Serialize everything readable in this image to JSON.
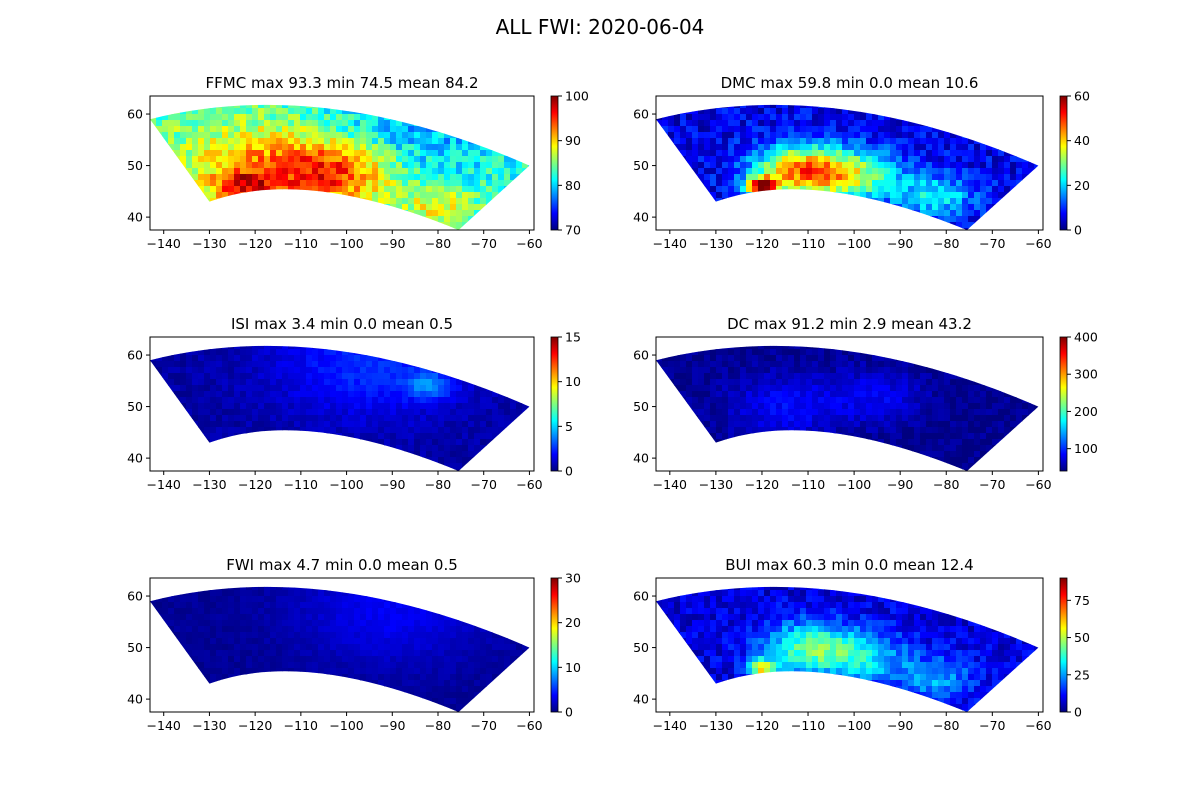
{
  "figure": {
    "title": "ALL FWI:  2020-06-04"
  },
  "colormap": [
    "#00007f",
    "#0000ff",
    "#007fff",
    "#00ffff",
    "#7fff7f",
    "#ffff00",
    "#ff7f00",
    "#ff0000",
    "#7f0000"
  ],
  "panels": [
    {
      "key": "ffmc",
      "title": "FFMC max 93.3  min 74.5 mean 84.2",
      "colorbar": {
        "min": 70,
        "max": 100,
        "ticks": [
          70,
          80,
          90,
          100
        ]
      },
      "hotspots": [
        {
          "lon": -115,
          "lat": 49,
          "value": 93,
          "spread": 0.22
        },
        {
          "lon": -100,
          "lat": 49,
          "value": 92,
          "spread": 0.15
        },
        {
          "lon": -123,
          "lat": 46,
          "value": 91,
          "spread": 0.07
        },
        {
          "lon": -138,
          "lat": 54,
          "value": 84,
          "spread": 0.2
        },
        {
          "lon": -90,
          "lat": 55,
          "value": 78,
          "spread": 0.25
        },
        {
          "lon": -80,
          "lat": 42,
          "value": 89,
          "spread": 0.1
        }
      ],
      "base": 83,
      "noise": 3
    },
    {
      "key": "dmc",
      "title": "DMC max 59.8  min 0.0 mean 10.6",
      "colorbar": {
        "min": 0,
        "max": 60,
        "ticks": [
          0,
          20,
          40,
          60
        ]
      },
      "hotspots": [
        {
          "lon": -112,
          "lat": 49,
          "value": 42,
          "spread": 0.12
        },
        {
          "lon": -120,
          "lat": 46,
          "value": 55,
          "spread": 0.04
        },
        {
          "lon": -100,
          "lat": 48,
          "value": 30,
          "spread": 0.12
        },
        {
          "lon": -82,
          "lat": 44,
          "value": 22,
          "spread": 0.1
        }
      ],
      "base": 6,
      "noise": 5
    },
    {
      "key": "isi",
      "title": "ISI max 3.4  min 0.0 mean 0.5",
      "colorbar": {
        "min": 0,
        "max": 15,
        "ticks": [
          0,
          5,
          10,
          15
        ]
      },
      "hotspots": [
        {
          "lon": -95,
          "lat": 58,
          "value": 2.5,
          "spread": 0.25
        },
        {
          "lon": -82,
          "lat": 54,
          "value": 3.0,
          "spread": 0.06
        }
      ],
      "base": 0.5,
      "noise": 0.4
    },
    {
      "key": "dc",
      "title": "DC max 91.2  min 2.9 mean 43.2",
      "colorbar": {
        "min": 40,
        "max": 400,
        "ticks": [
          100,
          200,
          300,
          400
        ]
      },
      "hotspots": [
        {
          "lon": -115,
          "lat": 50,
          "value": 85,
          "spread": 0.15
        },
        {
          "lon": -95,
          "lat": 52,
          "value": 80,
          "spread": 0.12
        }
      ],
      "base": 45,
      "noise": 12
    },
    {
      "key": "fwi",
      "title": "FWI max 4.7  min 0.0 mean 0.5",
      "colorbar": {
        "min": 0,
        "max": 30,
        "ticks": [
          0,
          10,
          20,
          30
        ]
      },
      "hotspots": [
        {
          "lon": -90,
          "lat": 57,
          "value": 3.5,
          "spread": 0.25
        }
      ],
      "base": 0.6,
      "noise": 0.5
    },
    {
      "key": "bui",
      "title": "BUI max 60.3  min 0.0 mean 12.4",
      "colorbar": {
        "min": 0,
        "max": 90,
        "ticks": [
          0,
          25,
          50,
          75
        ]
      },
      "hotspots": [
        {
          "lon": -110,
          "lat": 50,
          "value": 40,
          "spread": 0.12
        },
        {
          "lon": -120,
          "lat": 46,
          "value": 55,
          "spread": 0.04
        },
        {
          "lon": -98,
          "lat": 48,
          "value": 30,
          "spread": 0.12
        },
        {
          "lon": -82,
          "lat": 44,
          "value": 25,
          "spread": 0.1
        }
      ],
      "base": 8,
      "noise": 6
    }
  ],
  "axes": {
    "xticks": [
      -140,
      -130,
      -120,
      -110,
      -100,
      -90,
      -80,
      -70,
      -60
    ],
    "yticks": [
      40,
      50,
      60
    ],
    "xlim": [
      -143,
      -59
    ],
    "ylim": [
      37.5,
      63.5
    ]
  },
  "domain": {
    "west_corner": [
      -143,
      59
    ],
    "east_corner": [
      -60,
      50
    ],
    "sw_corner": [
      -130,
      43
    ],
    "se_corner": [
      -75.5,
      37.5
    ],
    "north_peak": [
      -105,
      64
    ],
    "south_peak": [
      -109,
      45.5
    ]
  }
}
